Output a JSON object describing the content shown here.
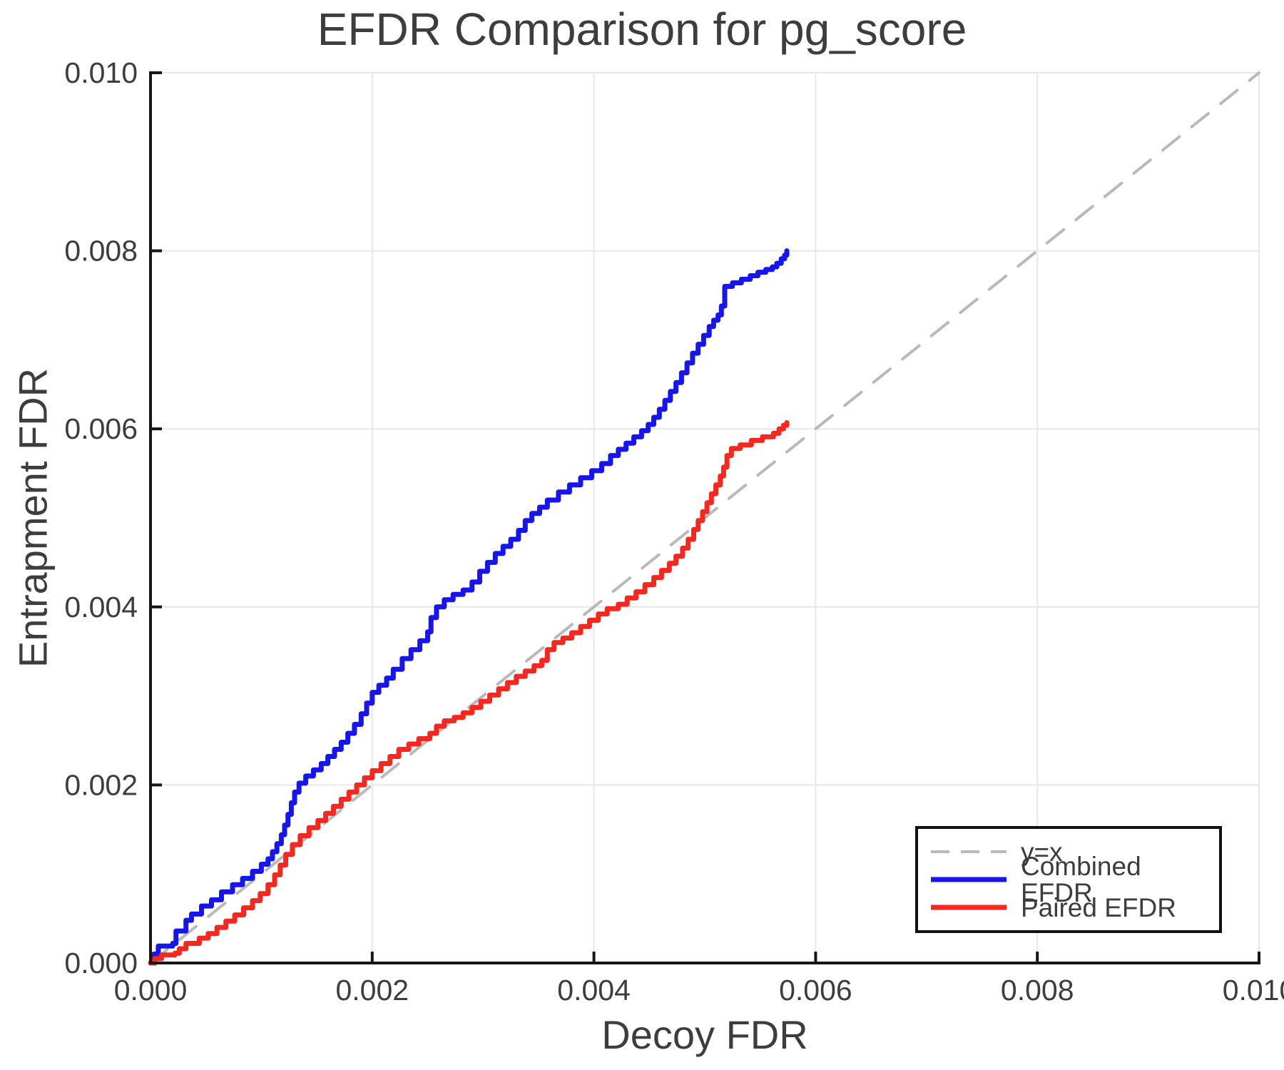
{
  "chart_data": {
    "type": "line",
    "title": "EFDR Comparison for pg_score",
    "xlabel": "Decoy FDR",
    "ylabel": "Entrapment FDR",
    "xlim": [
      0,
      0.01
    ],
    "ylim": [
      0,
      0.01
    ],
    "grid": true,
    "legend_position": "lower right",
    "axis_color": "#161616",
    "grid_color": "#e7e7e7",
    "text_color": "#3d3d3d",
    "xticks": {
      "values": [
        0,
        0.002,
        0.004,
        0.006,
        0.008,
        0.01
      ],
      "labels": [
        "0.000",
        "0.002",
        "0.004",
        "0.006",
        "0.008",
        "0.010"
      ]
    },
    "yticks": {
      "values": [
        0,
        0.002,
        0.004,
        0.006,
        0.008,
        0.01
      ],
      "labels": [
        "0.000",
        "0.002",
        "0.004",
        "0.006",
        "0.008",
        "0.010"
      ]
    },
    "series": [
      {
        "name": "y=x",
        "color": "#b9b9b9",
        "style": "dashed",
        "step": false,
        "width": 4,
        "points": [
          [
            0,
            0
          ],
          [
            0.01,
            0.01
          ]
        ]
      },
      {
        "name": "Combined EFDR",
        "color": "#1616ec",
        "style": "solid",
        "step": true,
        "width": 7,
        "points": [
          [
            0,
            0
          ],
          [
            3e-05,
            0.0001
          ],
          [
            7e-05,
            0.00019
          ],
          [
            0.0002,
            0.00022
          ],
          [
            0.00023,
            0.00036
          ],
          [
            0.00032,
            0.00048
          ],
          [
            0.00037,
            0.00055
          ],
          [
            0.00046,
            0.00064
          ],
          [
            0.00055,
            0.00071
          ],
          [
            0.00064,
            0.0008
          ],
          [
            0.00074,
            0.00088
          ],
          [
            0.00083,
            0.00095
          ],
          [
            0.00092,
            0.00103
          ],
          [
            0.001,
            0.00111
          ],
          [
            0.00106,
            0.00117
          ],
          [
            0.0011,
            0.00125
          ],
          [
            0.00114,
            0.00134
          ],
          [
            0.00118,
            0.00144
          ],
          [
            0.00121,
            0.00155
          ],
          [
            0.00124,
            0.00167
          ],
          [
            0.00127,
            0.0018
          ],
          [
            0.0013,
            0.00192
          ],
          [
            0.00134,
            0.00202
          ],
          [
            0.0014,
            0.0021
          ],
          [
            0.00147,
            0.00217
          ],
          [
            0.00154,
            0.00224
          ],
          [
            0.0016,
            0.00232
          ],
          [
            0.00166,
            0.0024
          ],
          [
            0.00172,
            0.00248
          ],
          [
            0.00178,
            0.00258
          ],
          [
            0.00184,
            0.00268
          ],
          [
            0.0019,
            0.0028
          ],
          [
            0.00195,
            0.00292
          ],
          [
            0.002,
            0.00304
          ],
          [
            0.00206,
            0.00312
          ],
          [
            0.00213,
            0.0032
          ],
          [
            0.00219,
            0.0033
          ],
          [
            0.00227,
            0.00342
          ],
          [
            0.00235,
            0.00352
          ],
          [
            0.00243,
            0.00362
          ],
          [
            0.0025,
            0.00372
          ],
          [
            0.00253,
            0.00388
          ],
          [
            0.00258,
            0.004
          ],
          [
            0.00265,
            0.00408
          ],
          [
            0.00273,
            0.00414
          ],
          [
            0.00282,
            0.00419
          ],
          [
            0.0029,
            0.00428
          ],
          [
            0.00297,
            0.0044
          ],
          [
            0.00304,
            0.0045
          ],
          [
            0.00311,
            0.0046
          ],
          [
            0.00318,
            0.00468
          ],
          [
            0.00325,
            0.00476
          ],
          [
            0.00332,
            0.00486
          ],
          [
            0.00338,
            0.00497
          ],
          [
            0.00344,
            0.00505
          ],
          [
            0.00351,
            0.00512
          ],
          [
            0.00358,
            0.0052
          ],
          [
            0.00368,
            0.00529
          ],
          [
            0.00378,
            0.00537
          ],
          [
            0.00388,
            0.00545
          ],
          [
            0.00398,
            0.00553
          ],
          [
            0.00407,
            0.00561
          ],
          [
            0.00415,
            0.0057
          ],
          [
            0.00422,
            0.00577
          ],
          [
            0.00429,
            0.00584
          ],
          [
            0.00436,
            0.00591
          ],
          [
            0.00443,
            0.00598
          ],
          [
            0.00449,
            0.00605
          ],
          [
            0.00454,
            0.00613
          ],
          [
            0.00459,
            0.00622
          ],
          [
            0.00464,
            0.00632
          ],
          [
            0.00469,
            0.00642
          ],
          [
            0.00474,
            0.00652
          ],
          [
            0.00479,
            0.00663
          ],
          [
            0.00484,
            0.00674
          ],
          [
            0.00489,
            0.00685
          ],
          [
            0.00494,
            0.00695
          ],
          [
            0.00499,
            0.00705
          ],
          [
            0.00504,
            0.00715
          ],
          [
            0.00508,
            0.00722
          ],
          [
            0.00512,
            0.00728
          ],
          [
            0.00515,
            0.00738
          ],
          [
            0.00518,
            0.0076
          ],
          [
            0.00525,
            0.00764
          ],
          [
            0.00533,
            0.00768
          ],
          [
            0.00541,
            0.00772
          ],
          [
            0.00548,
            0.00776
          ],
          [
            0.00555,
            0.00779
          ],
          [
            0.00561,
            0.00782
          ],
          [
            0.00565,
            0.00786
          ],
          [
            0.00569,
            0.00791
          ],
          [
            0.00572,
            0.00795
          ],
          [
            0.00574,
            0.008
          ]
        ]
      },
      {
        "name": "Paired EFDR",
        "color": "#f5271f",
        "style": "solid",
        "step": true,
        "width": 7,
        "points": [
          [
            0,
            0
          ],
          [
            4e-05,
            5e-05
          ],
          [
            0.0001,
            9e-05
          ],
          [
            0.00022,
            0.00011
          ],
          [
            0.00026,
            0.00016
          ],
          [
            0.00032,
            0.00022
          ],
          [
            0.00044,
            0.00028
          ],
          [
            0.00052,
            0.00033
          ],
          [
            0.0006,
            0.0004
          ],
          [
            0.00068,
            0.00047
          ],
          [
            0.00076,
            0.00054
          ],
          [
            0.00084,
            0.00062
          ],
          [
            0.00092,
            0.0007
          ],
          [
            0.00099,
            0.00078
          ],
          [
            0.00106,
            0.00088
          ],
          [
            0.00112,
            0.00099
          ],
          [
            0.00117,
            0.0011
          ],
          [
            0.00122,
            0.00122
          ],
          [
            0.00128,
            0.00133
          ],
          [
            0.00135,
            0.00143
          ],
          [
            0.00143,
            0.00152
          ],
          [
            0.00151,
            0.0016
          ],
          [
            0.00158,
            0.00168
          ],
          [
            0.00165,
            0.00176
          ],
          [
            0.00172,
            0.00184
          ],
          [
            0.00179,
            0.00192
          ],
          [
            0.00186,
            0.002
          ],
          [
            0.00193,
            0.00208
          ],
          [
            0.002,
            0.00216
          ],
          [
            0.00208,
            0.00224
          ],
          [
            0.00216,
            0.00232
          ],
          [
            0.00224,
            0.0024
          ],
          [
            0.00233,
            0.00246
          ],
          [
            0.00242,
            0.00252
          ],
          [
            0.00252,
            0.00258
          ],
          [
            0.00258,
            0.00266
          ],
          [
            0.00265,
            0.00272
          ],
          [
            0.00274,
            0.00276
          ],
          [
            0.00282,
            0.00281
          ],
          [
            0.0029,
            0.00287
          ],
          [
            0.00298,
            0.00294
          ],
          [
            0.00306,
            0.00301
          ],
          [
            0.00314,
            0.00308
          ],
          [
            0.00322,
            0.00315
          ],
          [
            0.0033,
            0.00322
          ],
          [
            0.00338,
            0.00328
          ],
          [
            0.00346,
            0.00334
          ],
          [
            0.00353,
            0.0034
          ],
          [
            0.00358,
            0.00352
          ],
          [
            0.00364,
            0.0036
          ],
          [
            0.00372,
            0.00365
          ],
          [
            0.0038,
            0.00371
          ],
          [
            0.00388,
            0.00378
          ],
          [
            0.00396,
            0.00385
          ],
          [
            0.00404,
            0.00392
          ],
          [
            0.00412,
            0.00398
          ],
          [
            0.00422,
            0.00403
          ],
          [
            0.0043,
            0.0041
          ],
          [
            0.00438,
            0.00417
          ],
          [
            0.00446,
            0.00425
          ],
          [
            0.00454,
            0.00433
          ],
          [
            0.00461,
            0.00441
          ],
          [
            0.00468,
            0.00449
          ],
          [
            0.00474,
            0.00457
          ],
          [
            0.0048,
            0.00466
          ],
          [
            0.00485,
            0.00476
          ],
          [
            0.0049,
            0.00487
          ],
          [
            0.00494,
            0.00497
          ],
          [
            0.00498,
            0.00507
          ],
          [
            0.00502,
            0.00517
          ],
          [
            0.00506,
            0.00527
          ],
          [
            0.0051,
            0.00537
          ],
          [
            0.00514,
            0.00547
          ],
          [
            0.00517,
            0.00557
          ],
          [
            0.0052,
            0.0057
          ],
          [
            0.00524,
            0.00578
          ],
          [
            0.00532,
            0.00582
          ],
          [
            0.00542,
            0.00587
          ],
          [
            0.00552,
            0.00591
          ],
          [
            0.00562,
            0.00595
          ],
          [
            0.00567,
            0.006
          ],
          [
            0.00571,
            0.00604
          ],
          [
            0.00574,
            0.00607
          ]
        ]
      }
    ]
  }
}
